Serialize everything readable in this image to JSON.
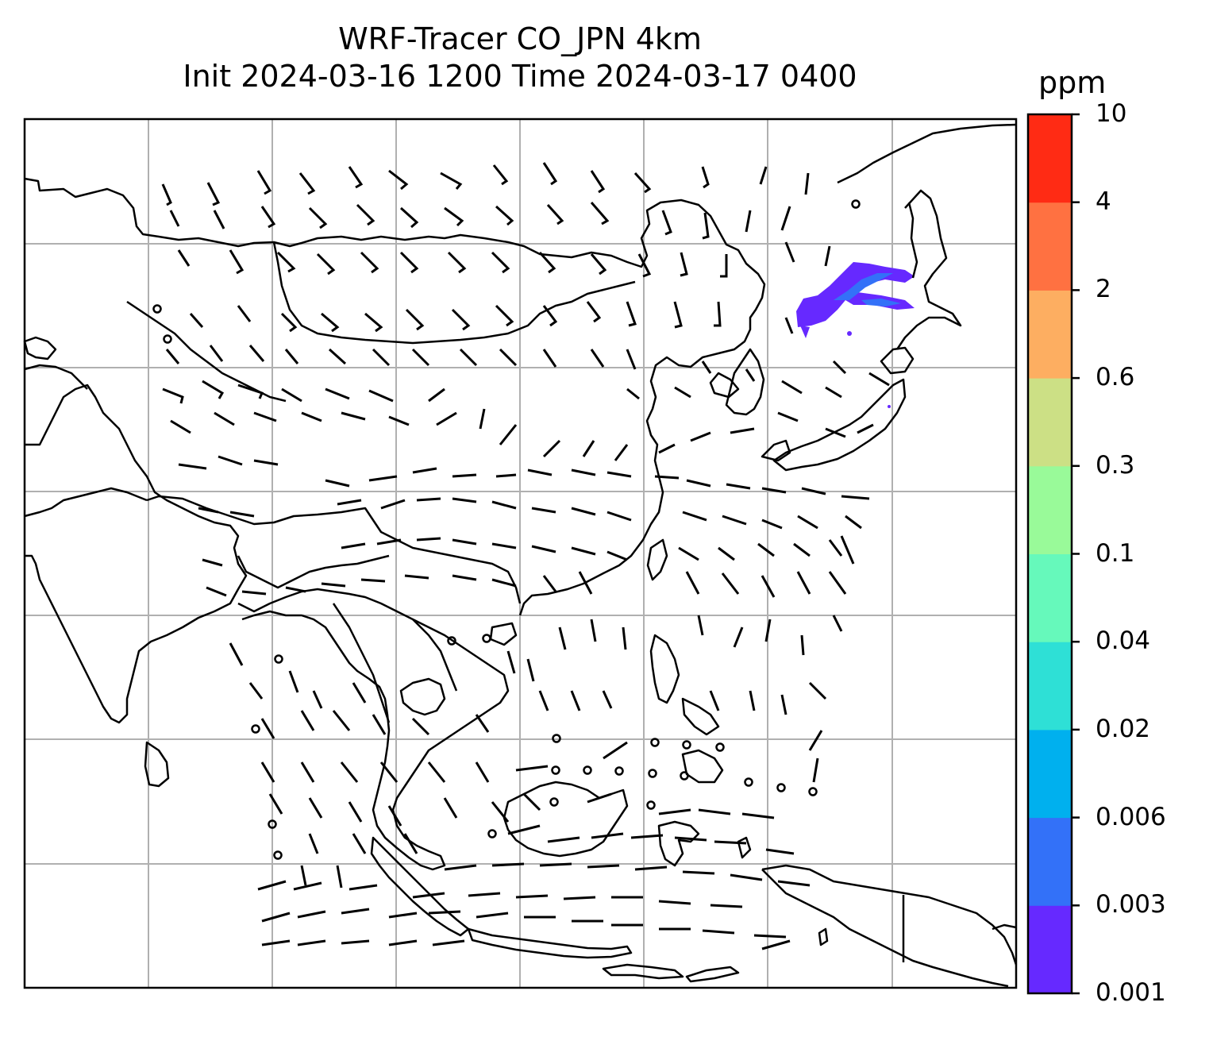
{
  "title": {
    "line1": "WRF-Tracer CO_JPN 4km",
    "line2": "Init 2024-03-16 1200 Time 2024-03-17 0400"
  },
  "colorbar": {
    "unit": "ppm",
    "levels": [
      "0.001",
      "0.003",
      "0.006",
      "0.02",
      "0.04",
      "0.1",
      "0.3",
      "0.6",
      "2",
      "4",
      "10"
    ],
    "colors": [
      "#6629ff",
      "#3371f8",
      "#00b0ee",
      "#2ee0d6",
      "#66f9bb",
      "#99fa99",
      "#cce085",
      "#fdae61",
      "#ff7141",
      "#ff2b14"
    ]
  },
  "map": {
    "gridlines": true,
    "coastline_color": "#000000",
    "gridline_color": "#b0b0b0",
    "tracer_plume": {
      "location": "northeast China / Russian Far East",
      "max_level": "0.006",
      "colors": [
        "#6629ff",
        "#3371f8"
      ]
    },
    "wind_barbs": true
  }
}
